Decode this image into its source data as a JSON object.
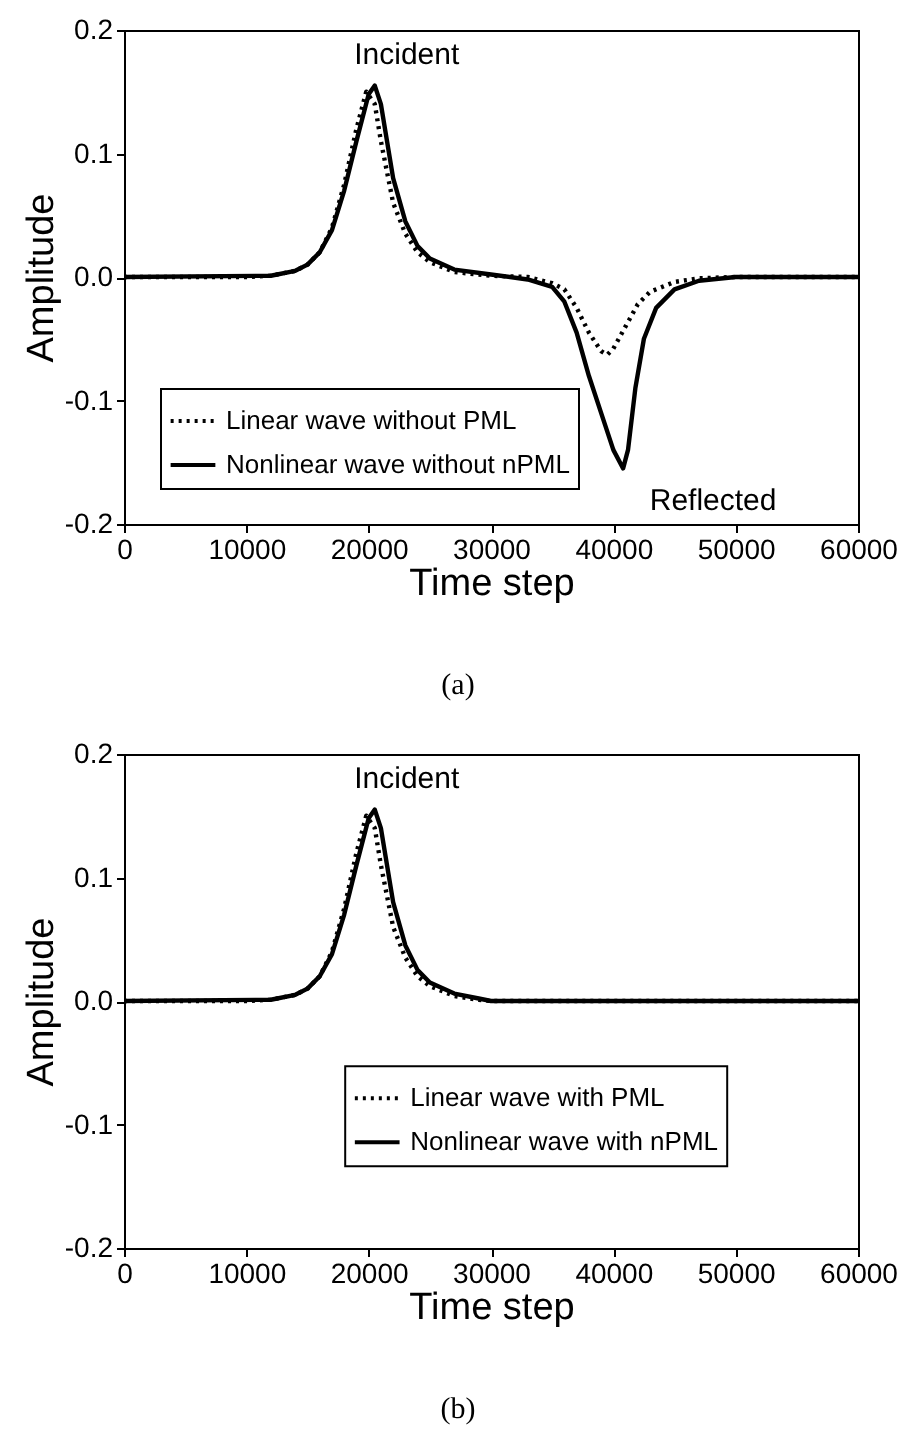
{
  "chart_data": [
    {
      "type": "line",
      "xlabel": "Time step",
      "ylabel": "Amplitude",
      "xlim": [
        0,
        60000
      ],
      "ylim": [
        -0.2,
        0.2
      ],
      "xticks": [
        0,
        10000,
        20000,
        30000,
        40000,
        50000,
        60000
      ],
      "yticks": [
        {
          "value": -0.2,
          "label": "-0.2"
        },
        {
          "value": -0.1,
          "label": "-0.1"
        },
        {
          "value": 0,
          "label": "0.0"
        },
        {
          "value": 0.1,
          "label": "0.1"
        },
        {
          "value": 0.2,
          "label": "0.2"
        }
      ],
      "legend": "bottom left",
      "grid": false,
      "annotations": [
        "Incident",
        "Reflected",
        "(a)"
      ],
      "series": [
        {
          "name": "Linear wave without PML",
          "color": "#000000",
          "line_style": "dotted",
          "x": [
            0,
            10000,
            12000,
            14000,
            15000,
            16000,
            17000,
            18000,
            19000,
            19800,
            20500,
            21000,
            22000,
            23000,
            24000,
            25000,
            27000,
            30000,
            33000,
            35000,
            36000,
            37000,
            38000,
            39000,
            39500,
            40000,
            41000,
            42000,
            43000,
            45000,
            47000,
            50000,
            60000
          ],
          "values": [
            0,
            0,
            0.001,
            0.005,
            0.01,
            0.02,
            0.04,
            0.075,
            0.12,
            0.15,
            0.14,
            0.11,
            0.06,
            0.035,
            0.02,
            0.012,
            0.004,
            0.001,
            0,
            -0.005,
            -0.01,
            -0.025,
            -0.045,
            -0.06,
            -0.063,
            -0.058,
            -0.04,
            -0.022,
            -0.012,
            -0.004,
            -0.001,
            0,
            0
          ]
        },
        {
          "name": "Nonlinear wave without nPML",
          "color": "#000000",
          "line_style": "solid",
          "x": [
            0,
            12000,
            14000,
            15000,
            16000,
            17000,
            18000,
            19000,
            20000,
            20500,
            21000,
            21500,
            22000,
            23000,
            24000,
            25000,
            27000,
            30000,
            33000,
            35000,
            36000,
            37000,
            38000,
            39000,
            40000,
            40800,
            41200,
            41800,
            42500,
            43500,
            45000,
            47000,
            50000,
            60000
          ],
          "values": [
            0,
            0.001,
            0.005,
            0.01,
            0.02,
            0.038,
            0.07,
            0.11,
            0.148,
            0.155,
            0.14,
            0.11,
            0.08,
            0.045,
            0.025,
            0.015,
            0.006,
            0.002,
            -0.002,
            -0.008,
            -0.02,
            -0.045,
            -0.08,
            -0.11,
            -0.14,
            -0.155,
            -0.14,
            -0.09,
            -0.05,
            -0.025,
            -0.01,
            -0.003,
            0,
            0
          ]
        }
      ]
    },
    {
      "type": "line",
      "xlabel": "Time step",
      "ylabel": "Amplitude",
      "xlim": [
        0,
        60000
      ],
      "ylim": [
        -0.2,
        0.2
      ],
      "xticks": [
        0,
        10000,
        20000,
        30000,
        40000,
        50000,
        60000
      ],
      "yticks": [
        {
          "value": -0.2,
          "label": "-0.2"
        },
        {
          "value": -0.1,
          "label": "-0.1"
        },
        {
          "value": 0,
          "label": "0.0"
        },
        {
          "value": 0.1,
          "label": "0.1"
        },
        {
          "value": 0.2,
          "label": "0.2"
        }
      ],
      "legend": "bottom",
      "grid": false,
      "annotations": [
        "Incident",
        "(b)"
      ],
      "series": [
        {
          "name": "Linear wave with PML",
          "color": "#000000",
          "line_style": "dotted",
          "x": [
            0,
            10000,
            12000,
            14000,
            15000,
            16000,
            17000,
            18000,
            19000,
            19800,
            20500,
            21000,
            22000,
            23000,
            24000,
            25000,
            27000,
            29000,
            30000,
            60000
          ],
          "values": [
            0,
            0,
            0.001,
            0.005,
            0.01,
            0.02,
            0.04,
            0.075,
            0.12,
            0.15,
            0.14,
            0.11,
            0.06,
            0.035,
            0.02,
            0.012,
            0.004,
            0.001,
            0,
            0
          ]
        },
        {
          "name": "Nonlinear wave with nPML",
          "color": "#000000",
          "line_style": "solid",
          "x": [
            0,
            12000,
            14000,
            15000,
            16000,
            17000,
            18000,
            19000,
            20000,
            20500,
            21000,
            21500,
            22000,
            23000,
            24000,
            25000,
            27000,
            29000,
            30000,
            60000
          ],
          "values": [
            0,
            0.001,
            0.005,
            0.01,
            0.02,
            0.038,
            0.07,
            0.11,
            0.148,
            0.155,
            0.14,
            0.11,
            0.08,
            0.045,
            0.025,
            0.015,
            0.006,
            0.002,
            0,
            0
          ]
        }
      ]
    }
  ]
}
